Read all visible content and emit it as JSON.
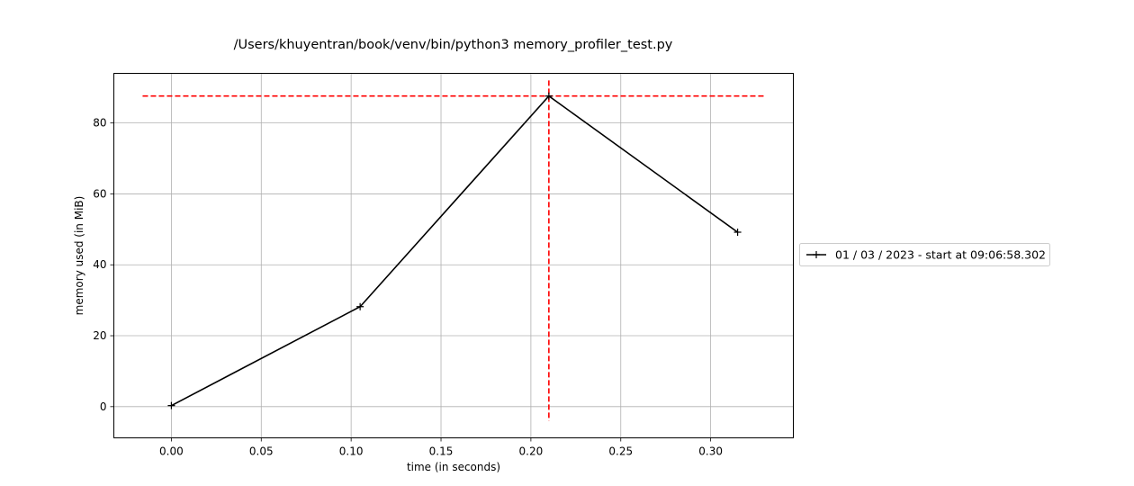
{
  "chart_data": {
    "type": "line",
    "title": "/Users/khuyentran/book/venv/bin/python3 memory_profiler_test.py",
    "xlabel": "time (in seconds)",
    "ylabel": "memory used (in MiB)",
    "xlim": [
      -0.032,
      0.346
    ],
    "ylim": [
      -8.8,
      94.0
    ],
    "grid": true,
    "legend_placement": "outside-right",
    "x_ticks": [
      0.0,
      0.05,
      0.1,
      0.15,
      0.2,
      0.25,
      0.3
    ],
    "x_tick_labels": [
      "0.00",
      "0.05",
      "0.10",
      "0.15",
      "0.20",
      "0.25",
      "0.30"
    ],
    "y_ticks": [
      0,
      20,
      40,
      60,
      80
    ],
    "y_tick_labels": [
      "0",
      "20",
      "40",
      "60",
      "80"
    ],
    "series": [
      {
        "name": "01 / 03 / 2023 - start at 09:06:58.302",
        "color": "#000000",
        "marker": "plus",
        "x": [
          0.0,
          0.105,
          0.21,
          0.315
        ],
        "y": [
          0.3,
          28.2,
          87.6,
          49.2
        ]
      }
    ],
    "reference_lines": [
      {
        "orientation": "horizontal",
        "value": 87.6,
        "from": -0.016,
        "to": 0.33,
        "color": "#ff0000",
        "style": "dashed"
      },
      {
        "orientation": "vertical",
        "value": 0.21,
        "from": -4.0,
        "to": 92.0,
        "color": "#ff0000",
        "style": "dashed"
      }
    ],
    "colors": {
      "grid": "#b0b0b0",
      "axes": "#000000",
      "legend_border": "#cccccc"
    }
  }
}
